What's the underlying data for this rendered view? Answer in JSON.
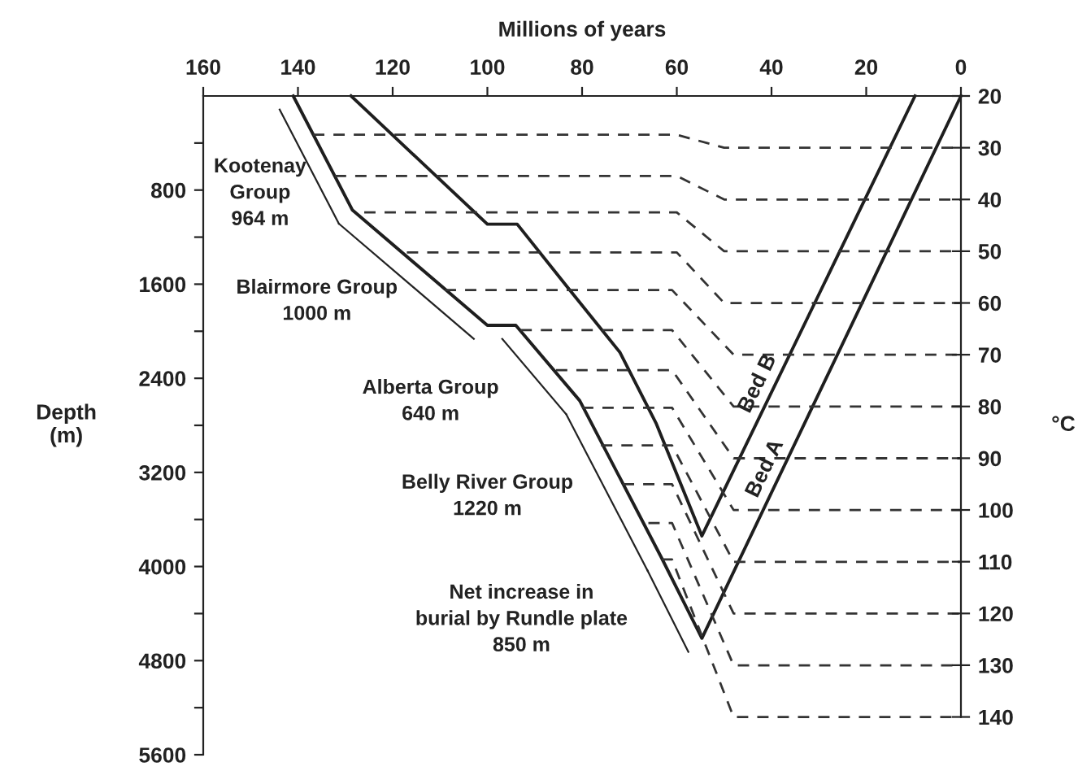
{
  "chart_data": {
    "type": "line",
    "xlabel": "Millions of years",
    "ylabel": "Depth\n(m)",
    "y2label": "°C",
    "xlim": [
      160,
      0
    ],
    "xticks": [
      160,
      140,
      120,
      100,
      80,
      60,
      40,
      20,
      0
    ],
    "ylim": [
      5600,
      0
    ],
    "yticks": [
      {
        "value": 400,
        "label": null
      },
      800,
      {
        "value": 1200,
        "label": null
      },
      1600,
      {
        "value": 2000,
        "label": null
      },
      2400,
      {
        "value": 2800,
        "label": null
      },
      3200,
      {
        "value": 3600,
        "label": null
      },
      4000,
      {
        "value": 4400,
        "label": null
      },
      4800,
      {
        "value": 5200,
        "label": null
      },
      5600
    ],
    "y2lim": [
      147.3,
      20
    ],
    "y2ticks": [
      20,
      30,
      40,
      50,
      60,
      70,
      80,
      90,
      100,
      110,
      120,
      130,
      140
    ],
    "grid": false,
    "legend": false,
    "marker": "none",
    "series": [
      {
        "name": "Bed A",
        "color": "#1e1e1e",
        "line_style": "solid",
        "x": [
          141,
          128.5,
          100,
          94,
          80.5,
          63.3,
          54.7,
          0
        ],
        "values": [
          0,
          970,
          1950,
          1950,
          2590,
          3920,
          4610,
          0
        ]
      },
      {
        "name": "Bed B",
        "color": "#1e1e1e",
        "line_style": "solid",
        "x": [
          128.8,
          100,
          93.7,
          83,
          72,
          64.4,
          54.7,
          9.7
        ],
        "values": [
          0,
          1090,
          1090,
          1630,
          2180,
          2780,
          3740,
          0
        ]
      },
      {
        "color": "#333333",
        "line_style": "dashed",
        "x": [
          136.8,
          60,
          50,
          0
        ],
        "values": [
          330,
          330,
          440,
          440
        ]
      },
      {
        "color": "#333333",
        "line_style": "dashed",
        "x": [
          132.2,
          60,
          50,
          0
        ],
        "values": [
          680,
          680,
          880,
          880
        ]
      },
      {
        "color": "#333333",
        "line_style": "dashed",
        "x": [
          126,
          60,
          50,
          0
        ],
        "values": [
          990,
          990,
          1320,
          1320
        ]
      },
      {
        "color": "#333333",
        "line_style": "dashed",
        "x": [
          117,
          60,
          50,
          0
        ],
        "values": [
          1330,
          1330,
          1760,
          1760
        ]
      },
      {
        "color": "#333333",
        "line_style": "dashed",
        "x": [
          109,
          61,
          48,
          0
        ],
        "values": [
          1650,
          1650,
          2200,
          2200
        ]
      },
      {
        "color": "#333333",
        "line_style": "dashed",
        "x": [
          93,
          61,
          48,
          0
        ],
        "values": [
          1990,
          1990,
          2640,
          2640
        ]
      },
      {
        "color": "#333333",
        "line_style": "dashed",
        "x": [
          85.5,
          61,
          48,
          0
        ],
        "values": [
          2330,
          2330,
          3080,
          3080
        ]
      },
      {
        "color": "#333333",
        "line_style": "dashed",
        "x": [
          80,
          61,
          48,
          0
        ],
        "values": [
          2650,
          2650,
          3520,
          3520
        ]
      },
      {
        "color": "#333333",
        "line_style": "dashed",
        "x": [
          76,
          61,
          48,
          0
        ],
        "values": [
          2970,
          2970,
          3960,
          3960
        ]
      },
      {
        "color": "#333333",
        "line_style": "dashed",
        "x": [
          71.4,
          61,
          48,
          0
        ],
        "values": [
          3300,
          3300,
          4400,
          4400
        ]
      },
      {
        "color": "#333333",
        "line_style": "dashed",
        "x": [
          66,
          61,
          48,
          0
        ],
        "values": [
          3630,
          3630,
          4840,
          4840
        ]
      },
      {
        "color": "#333333",
        "line_style": "dashed",
        "x": [
          63.2,
          61,
          48,
          0
        ],
        "values": [
          3940,
          3940,
          5280,
          5280
        ]
      }
    ],
    "annotations": [
      "Kootenay\nGroup\n964 m",
      "Blairmore Group\n1000 m",
      "Alberta Group\n640 m",
      "Belly River Group\n1220 m",
      "Net increase in\nburial by Rundle plate\n850 m"
    ]
  }
}
